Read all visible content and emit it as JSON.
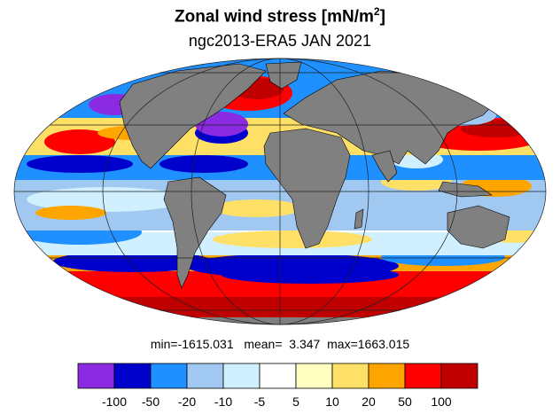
{
  "title": {
    "main": "Zonal wind stress [mN/m",
    "sup": "2",
    "close": "]"
  },
  "subtitle": "ngc2013-ERA5  JAN 2021",
  "stats": {
    "min_label": "min=",
    "min": "-1615.031",
    "mean_label": "mean=",
    "mean": "3.347",
    "max_label": "max=",
    "max": "1663.015"
  },
  "colorbar": {
    "colors": [
      "#8a2be2",
      "#0000cd",
      "#1e90ff",
      "#a0c8f0",
      "#d0f0ff",
      "#ffffff",
      "#ffffc0",
      "#ffe066",
      "#ffa500",
      "#ff0000",
      "#c00000"
    ],
    "labels": [
      "-100",
      "-50",
      "-20",
      "-10",
      "-5",
      "5",
      "10",
      "20",
      "50",
      "100"
    ]
  },
  "palette": {
    "land": "#808080",
    "coast": "#000000",
    "grid": "#202020"
  }
}
